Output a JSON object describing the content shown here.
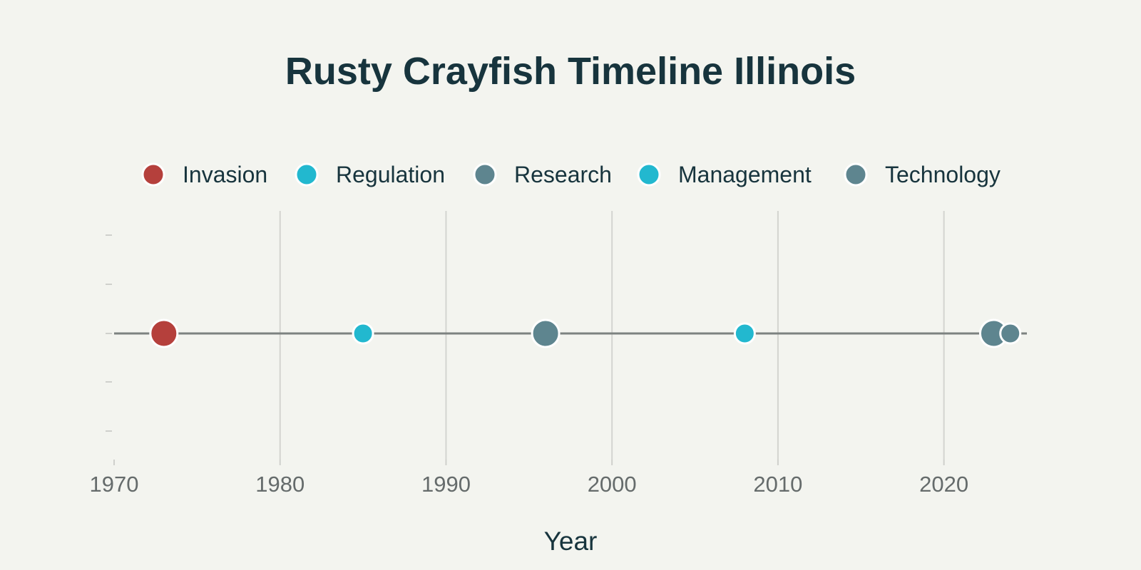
{
  "chart_data": {
    "type": "scatter",
    "title": "Rusty Crayfish Timeline Illinois",
    "xlabel": "Year",
    "ylabel": "",
    "xlim": [
      1970,
      2025
    ],
    "ylim": [
      -1,
      1
    ],
    "x_ticks": [
      1970,
      1980,
      1990,
      2000,
      2010,
      2020
    ],
    "grid": true,
    "legend_position": "top",
    "legend": [
      {
        "name": "Invasion",
        "color": "#b5403c"
      },
      {
        "name": "Regulation",
        "color": "#22b8cf"
      },
      {
        "name": "Research",
        "color": "#5e858f"
      },
      {
        "name": "Management",
        "color": "#22b8cf"
      },
      {
        "name": "Technology",
        "color": "#5e858f"
      }
    ],
    "series": [
      {
        "name": "Invasion",
        "color": "#b5403c",
        "points": [
          {
            "x": 1973,
            "y": 0,
            "size": "large"
          }
        ]
      },
      {
        "name": "Regulation",
        "color": "#22b8cf",
        "points": [
          {
            "x": 1985,
            "y": 0,
            "size": "small"
          }
        ]
      },
      {
        "name": "Research",
        "color": "#5e858f",
        "points": [
          {
            "x": 1996,
            "y": 0,
            "size": "large"
          },
          {
            "x": 2023,
            "y": 0,
            "size": "large"
          }
        ]
      },
      {
        "name": "Management",
        "color": "#22b8cf",
        "points": [
          {
            "x": 2008,
            "y": 0,
            "size": "small"
          }
        ]
      },
      {
        "name": "Technology",
        "color": "#5e858f",
        "points": [
          {
            "x": 2024,
            "y": 0,
            "size": "small"
          }
        ]
      }
    ]
  }
}
